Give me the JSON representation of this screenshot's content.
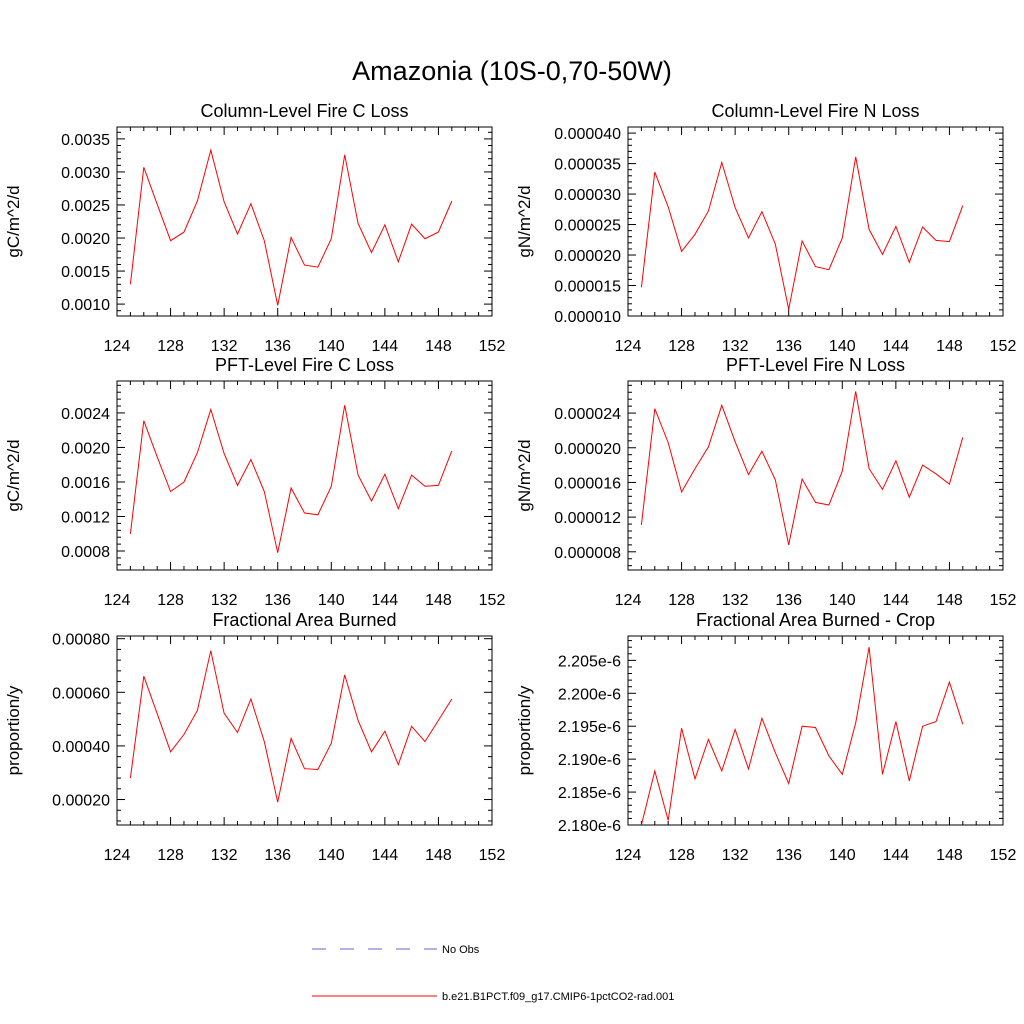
{
  "title": "Amazonia (10S-0,70-50W)",
  "colors": {
    "model": "#ff0000",
    "obs": "#6666cc",
    "axis": "#000000"
  },
  "legend": {
    "obs_label": "No Obs",
    "model_label": "b.e21.B1PCT.f09_g17.CMIP6-1pctCO2-rad.001"
  },
  "chart_data": [
    {
      "type": "line",
      "title": "Column-Level Fire C Loss",
      "ylabel": "gC/m^2/d",
      "xlim": [
        124,
        152
      ],
      "ylim": [
        0.00082,
        0.00368
      ],
      "xticks": [
        124,
        128,
        132,
        136,
        140,
        144,
        148,
        152
      ],
      "yticks": [
        0.001,
        0.0015,
        0.002,
        0.0025,
        0.003,
        0.0035
      ],
      "ytick_labels": [
        "0.0010",
        "0.0015",
        "0.0020",
        "0.0025",
        "0.0030",
        "0.0035"
      ],
      "x": [
        125,
        126,
        127,
        128,
        129,
        130,
        131,
        132,
        133,
        134,
        135,
        136,
        137,
        138,
        139,
        140,
        141,
        142,
        143,
        144,
        145,
        146,
        147,
        148,
        149
      ],
      "series": [
        {
          "values": [
            0.0013,
            0.00307,
            0.00251,
            0.00196,
            0.00209,
            0.00256,
            0.00333,
            0.00255,
            0.00206,
            0.00252,
            0.00196,
            0.00098,
            0.00201,
            0.00159,
            0.00156,
            0.00199,
            0.00326,
            0.00222,
            0.00178,
            0.0022,
            0.00164,
            0.00221,
            0.00199,
            0.00209,
            0.00256
          ]
        }
      ]
    },
    {
      "type": "line",
      "title": "Column-Level Fire N Loss",
      "ylabel": "gN/m^2/d",
      "xlim": [
        124,
        152
      ],
      "ylim": [
        1e-05,
        4.1e-05
      ],
      "xticks": [
        124,
        128,
        132,
        136,
        140,
        144,
        148,
        152
      ],
      "yticks": [
        1e-05,
        1.5e-05,
        2e-05,
        2.5e-05,
        3e-05,
        3.5e-05,
        4e-05
      ],
      "ytick_labels": [
        "0.000010",
        "0.000015",
        "0.000020",
        "0.000025",
        "0.000030",
        "0.000035",
        "0.000040"
      ],
      "x": [
        125,
        126,
        127,
        128,
        129,
        130,
        131,
        132,
        133,
        134,
        135,
        136,
        137,
        138,
        139,
        140,
        141,
        142,
        143,
        144,
        145,
        146,
        147,
        148,
        149
      ],
      "series": [
        {
          "values": [
            1.47e-05,
            3.36e-05,
            2.79e-05,
            2.06e-05,
            2.34e-05,
            2.72e-05,
            3.52e-05,
            2.78e-05,
            2.28e-05,
            2.71e-05,
            2.18e-05,
            1.11e-05,
            2.23e-05,
            1.81e-05,
            1.76e-05,
            2.28e-05,
            3.61e-05,
            2.42e-05,
            2.01e-05,
            2.47e-05,
            1.88e-05,
            2.46e-05,
            2.24e-05,
            2.22e-05,
            2.81e-05
          ]
        }
      ]
    },
    {
      "type": "line",
      "title": "PFT-Level Fire C Loss",
      "ylabel": "gC/m^2/d",
      "xlim": [
        124,
        152
      ],
      "ylim": [
        0.00058,
        0.00277
      ],
      "xticks": [
        124,
        128,
        132,
        136,
        140,
        144,
        148,
        152
      ],
      "yticks": [
        0.0008,
        0.0012,
        0.0016,
        0.002,
        0.0024
      ],
      "ytick_labels": [
        "0.0008",
        "0.0012",
        "0.0016",
        "0.0020",
        "0.0024"
      ],
      "x": [
        125,
        126,
        127,
        128,
        129,
        130,
        131,
        132,
        133,
        134,
        135,
        136,
        137,
        138,
        139,
        140,
        141,
        142,
        143,
        144,
        145,
        146,
        147,
        148,
        149
      ],
      "series": [
        {
          "values": [
            0.001,
            0.00231,
            0.00189,
            0.00149,
            0.0016,
            0.00194,
            0.00244,
            0.00193,
            0.00156,
            0.00186,
            0.00149,
            0.00078,
            0.00153,
            0.00124,
            0.00122,
            0.00155,
            0.00249,
            0.00168,
            0.00138,
            0.00169,
            0.00129,
            0.00168,
            0.00155,
            0.00156,
            0.00196
          ]
        }
      ]
    },
    {
      "type": "line",
      "title": "PFT-Level Fire N Loss",
      "ylabel": "gN/m^2/d",
      "xlim": [
        124,
        152
      ],
      "ylim": [
        5.9e-06,
        2.77e-05
      ],
      "xticks": [
        124,
        128,
        132,
        136,
        140,
        144,
        148,
        152
      ],
      "yticks": [
        8e-06,
        1.2e-05,
        1.6e-05,
        2e-05,
        2.4e-05
      ],
      "ytick_labels": [
        "0.000008",
        "0.000012",
        "0.000016",
        "0.000020",
        "0.000024"
      ],
      "x": [
        125,
        126,
        127,
        128,
        129,
        130,
        131,
        132,
        133,
        134,
        135,
        136,
        137,
        138,
        139,
        140,
        141,
        142,
        143,
        144,
        145,
        146,
        147,
        148,
        149
      ],
      "series": [
        {
          "values": [
            1.11e-05,
            2.45e-05,
            2.06e-05,
            1.49e-05,
            1.76e-05,
            2.01e-05,
            2.49e-05,
            2.07e-05,
            1.69e-05,
            1.96e-05,
            1.63e-05,
            8.8e-06,
            1.64e-05,
            1.37e-05,
            1.34e-05,
            1.73e-05,
            2.65e-05,
            1.76e-05,
            1.52e-05,
            1.85e-05,
            1.43e-05,
            1.8e-05,
            1.7e-05,
            1.58e-05,
            2.12e-05
          ]
        }
      ]
    },
    {
      "type": "line",
      "title": "Fractional Area Burned",
      "ylabel": "proportion/y",
      "xlim": [
        124,
        152
      ],
      "ylim": [
        0.000105,
        0.00081
      ],
      "xticks": [
        124,
        128,
        132,
        136,
        140,
        144,
        148,
        152
      ],
      "yticks": [
        0.0002,
        0.0004,
        0.0006,
        0.0008
      ],
      "ytick_labels": [
        "0.00020",
        "0.00040",
        "0.00060",
        "0.00080"
      ],
      "x": [
        125,
        126,
        127,
        128,
        129,
        130,
        131,
        132,
        133,
        134,
        135,
        136,
        137,
        138,
        139,
        140,
        141,
        142,
        143,
        144,
        145,
        146,
        147,
        148,
        149
      ],
      "series": [
        {
          "values": [
            0.00028,
            0.00066,
            0.00052,
            0.000378,
            0.000443,
            0.000532,
            0.000755,
            0.000522,
            0.00045,
            0.000575,
            0.000416,
            0.00019,
            0.000428,
            0.000315,
            0.000312,
            0.00041,
            0.000665,
            0.000495,
            0.000378,
            0.000455,
            0.00033,
            0.000473,
            0.000416,
            0.000495,
            0.000575
          ]
        }
      ]
    },
    {
      "type": "line",
      "title": "Fractional Area Burned - Crop",
      "ylabel": "proportion/y",
      "xlim": [
        124,
        152
      ],
      "ylim": [
        2.18e-06,
        2.2087e-06
      ],
      "xticks": [
        124,
        128,
        132,
        136,
        140,
        144,
        148,
        152
      ],
      "yticks": [
        2.18e-06,
        2.185e-06,
        2.19e-06,
        2.195e-06,
        2.2e-06,
        2.205e-06
      ],
      "ytick_labels": [
        "2.180e-6",
        "2.185e-6",
        "2.190e-6",
        "2.195e-6",
        "2.200e-6",
        "2.205e-6"
      ],
      "x": [
        125,
        126,
        127,
        128,
        129,
        130,
        131,
        132,
        133,
        134,
        135,
        136,
        137,
        138,
        139,
        140,
        141,
        142,
        143,
        144,
        145,
        146,
        147,
        148,
        149
      ],
      "series": [
        {
          "values": [
            2.18e-06,
            2.1882e-06,
            2.1807e-06,
            2.1947e-06,
            2.187e-06,
            2.193e-06,
            2.1882e-06,
            2.1945e-06,
            2.1885e-06,
            2.1962e-06,
            2.191e-06,
            2.1863e-06,
            2.195e-06,
            2.1948e-06,
            2.1905e-06,
            2.1877e-06,
            2.1955e-06,
            2.207e-06,
            2.1877e-06,
            2.1957e-06,
            2.1867e-06,
            2.195e-06,
            2.1957e-06,
            2.2017e-06,
            2.1953e-06
          ]
        }
      ]
    }
  ]
}
